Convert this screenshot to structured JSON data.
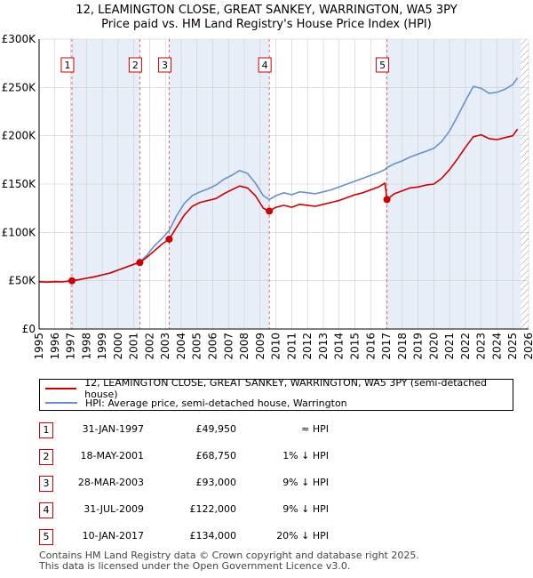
{
  "title_line1": "12, LEAMINGTON CLOSE, GREAT SANKEY, WARRINGTON, WA5 3PY",
  "title_line2": "Price paid vs. HM Land Registry's House Price Index (HPI)",
  "colors": {
    "price_line": "#cc0000",
    "hpi_line": "#6a8fd0",
    "shade": "#e8eef8",
    "grid": "#cccccc",
    "marker_border": "#cc0000"
  },
  "chart_data": {
    "type": "line",
    "x_range": [
      1995,
      2026
    ],
    "ylim": [
      0,
      300000
    ],
    "y_ticks": [
      {
        "value": 0,
        "label": "£0"
      },
      {
        "value": 50000,
        "label": "£50K"
      },
      {
        "value": 100000,
        "label": "£100K"
      },
      {
        "value": 150000,
        "label": "£150K"
      },
      {
        "value": 200000,
        "label": "£200K"
      },
      {
        "value": 250000,
        "label": "£250K"
      },
      {
        "value": 300000,
        "label": "£300K"
      }
    ],
    "x_ticks": [
      "1995",
      "1996",
      "1997",
      "1998",
      "1999",
      "2000",
      "2001",
      "2002",
      "2003",
      "2004",
      "2005",
      "2006",
      "2007",
      "2008",
      "2009",
      "2010",
      "2011",
      "2012",
      "2013",
      "2014",
      "2015",
      "2016",
      "2017",
      "2018",
      "2019",
      "2020",
      "2021",
      "2022",
      "2023",
      "2024",
      "2025",
      "2026"
    ],
    "shaded_ranges": [
      [
        1997.08,
        2001.38
      ],
      [
        2003.24,
        2009.58
      ],
      [
        2017.03,
        2025.5
      ]
    ],
    "hatched_from": 2025.5,
    "series": [
      {
        "name": "12, LEAMINGTON CLOSE, GREAT SANKEY, WARRINGTON, WA5 3PY (semi-detached house)",
        "color": "#cc0000",
        "x": [
          1995.0,
          1995.5,
          1996.0,
          1996.5,
          1997.08,
          1997.5,
          1998.0,
          1998.5,
          1999.0,
          1999.5,
          2000.0,
          2000.5,
          2001.0,
          2001.38,
          2001.8,
          2002.3,
          2002.8,
          2003.24,
          2003.7,
          2004.2,
          2004.7,
          2005.2,
          2005.7,
          2006.2,
          2006.7,
          2007.2,
          2007.7,
          2008.2,
          2008.7,
          2009.2,
          2009.58,
          2010.0,
          2010.5,
          2011.0,
          2011.5,
          2012.0,
          2012.5,
          2013.0,
          2013.5,
          2014.0,
          2014.5,
          2015.0,
          2015.5,
          2016.0,
          2016.5,
          2016.9,
          2017.03,
          2017.5,
          2018.0,
          2018.5,
          2019.0,
          2019.5,
          2020.0,
          2020.5,
          2021.0,
          2021.5,
          2022.0,
          2022.5,
          2023.0,
          2023.5,
          2024.0,
          2024.5,
          2025.0,
          2025.3
        ],
        "values": [
          49000,
          48500,
          49000,
          48800,
          49950,
          51000,
          52500,
          54000,
          56000,
          58000,
          61000,
          64000,
          67000,
          68750,
          74000,
          81000,
          88000,
          93000,
          105000,
          118000,
          127000,
          131000,
          133000,
          135000,
          140000,
          144000,
          148000,
          146000,
          138000,
          125000,
          122000,
          126000,
          128000,
          126000,
          129000,
          128000,
          127000,
          129000,
          131000,
          133000,
          136000,
          139000,
          141000,
          144000,
          147000,
          151000,
          134000,
          140000,
          143000,
          146000,
          147000,
          149000,
          150000,
          156000,
          165000,
          176000,
          188000,
          199000,
          201000,
          197000,
          196000,
          198000,
          200000,
          207000
        ]
      },
      {
        "name": "HPI: Average price, semi-detached house, Warrington",
        "color": "#6a8fd0",
        "x": [
          1995.0,
          1995.5,
          1996.0,
          1996.5,
          1997.08,
          1997.5,
          1998.0,
          1998.5,
          1999.0,
          1999.5,
          2000.0,
          2000.5,
          2001.0,
          2001.38,
          2001.8,
          2002.3,
          2002.8,
          2003.24,
          2003.7,
          2004.2,
          2004.7,
          2005.2,
          2005.7,
          2006.2,
          2006.7,
          2007.2,
          2007.7,
          2008.2,
          2008.7,
          2009.2,
          2009.58,
          2010.0,
          2010.5,
          2011.0,
          2011.5,
          2012.0,
          2012.5,
          2013.0,
          2013.5,
          2014.0,
          2014.5,
          2015.0,
          2015.5,
          2016.0,
          2016.5,
          2016.9,
          2017.03,
          2017.5,
          2018.0,
          2018.5,
          2019.0,
          2019.5,
          2020.0,
          2020.5,
          2021.0,
          2021.5,
          2022.0,
          2022.5,
          2023.0,
          2023.5,
          2024.0,
          2024.5,
          2025.0,
          2025.3
        ],
        "values": [
          49000,
          48800,
          49200,
          49000,
          49950,
          51000,
          52500,
          54000,
          56000,
          58000,
          61000,
          64000,
          67000,
          69500,
          76000,
          86000,
          94000,
          102000,
          117000,
          130000,
          138000,
          142000,
          145000,
          149000,
          155000,
          159000,
          164000,
          161000,
          151000,
          138000,
          134000,
          138000,
          141000,
          139000,
          142000,
          141000,
          140000,
          142000,
          144000,
          147000,
          150000,
          153000,
          156000,
          159000,
          162000,
          165000,
          167000,
          171000,
          174000,
          178000,
          181000,
          184000,
          187000,
          194000,
          205000,
          220000,
          236000,
          251000,
          249000,
          244000,
          245000,
          248000,
          253000,
          260000
        ]
      }
    ],
    "sale_points": [
      {
        "id": "1",
        "x": 1997.08,
        "y": 49950
      },
      {
        "id": "2",
        "x": 2001.38,
        "y": 68750
      },
      {
        "id": "3",
        "x": 2003.24,
        "y": 93000
      },
      {
        "id": "4",
        "x": 2009.58,
        "y": 122000
      },
      {
        "id": "5",
        "x": 2017.03,
        "y": 134000
      }
    ]
  },
  "legend": {
    "price_label": "12, LEAMINGTON CLOSE, GREAT SANKEY, WARRINGTON, WA5 3PY (semi-detached house)",
    "hpi_label": "HPI: Average price, semi-detached house, Warrington"
  },
  "sales": [
    {
      "num": "1",
      "date": "31-JAN-1997",
      "price": "£49,950",
      "hpi": "≈ HPI"
    },
    {
      "num": "2",
      "date": "18-MAY-2001",
      "price": "£68,750",
      "hpi": "1% ↓ HPI"
    },
    {
      "num": "3",
      "date": "28-MAR-2003",
      "price": "£93,000",
      "hpi": "9% ↓ HPI"
    },
    {
      "num": "4",
      "date": "31-JUL-2009",
      "price": "£122,000",
      "hpi": "9% ↓ HPI"
    },
    {
      "num": "5",
      "date": "10-JAN-2017",
      "price": "£134,000",
      "hpi": "20% ↓ HPI"
    }
  ],
  "footer": {
    "line1": "Contains HM Land Registry data © Crown copyright and database right 2025.",
    "line2": "This data is licensed under the Open Government Licence v3.0."
  }
}
